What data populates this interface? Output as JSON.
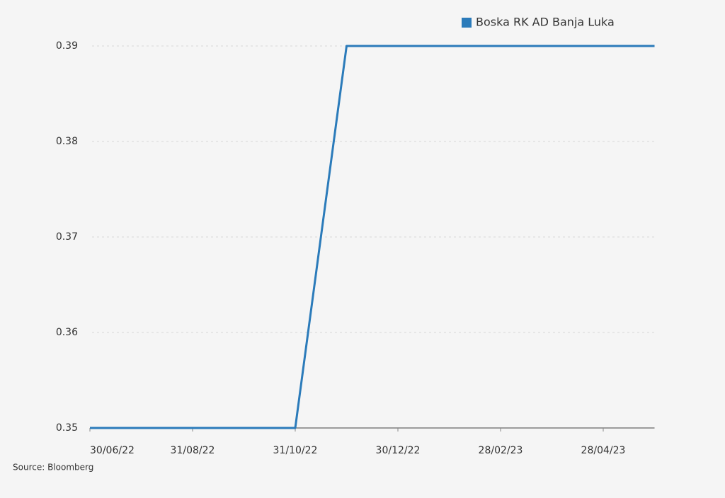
{
  "chart_data": {
    "type": "line",
    "categories": [
      "30/06/22",
      null,
      "31/08/22",
      null,
      "31/10/22",
      null,
      "30/12/22",
      null,
      "28/02/23",
      null,
      "28/04/23",
      null
    ],
    "series": [
      {
        "name": "Boska RK AD Banja Luka",
        "color": "#2b7bba",
        "values": [
          0.35,
          0.35,
          0.35,
          0.35,
          0.35,
          0.39,
          0.39,
          0.39,
          0.39,
          0.39,
          0.39,
          0.39
        ]
      }
    ],
    "ylim": [
      0.35,
      0.39
    ],
    "yticks": [
      0.35,
      0.36,
      0.37,
      0.38,
      0.39
    ],
    "grid": true,
    "legend": "top-right",
    "source": "Source: Bloomberg"
  }
}
